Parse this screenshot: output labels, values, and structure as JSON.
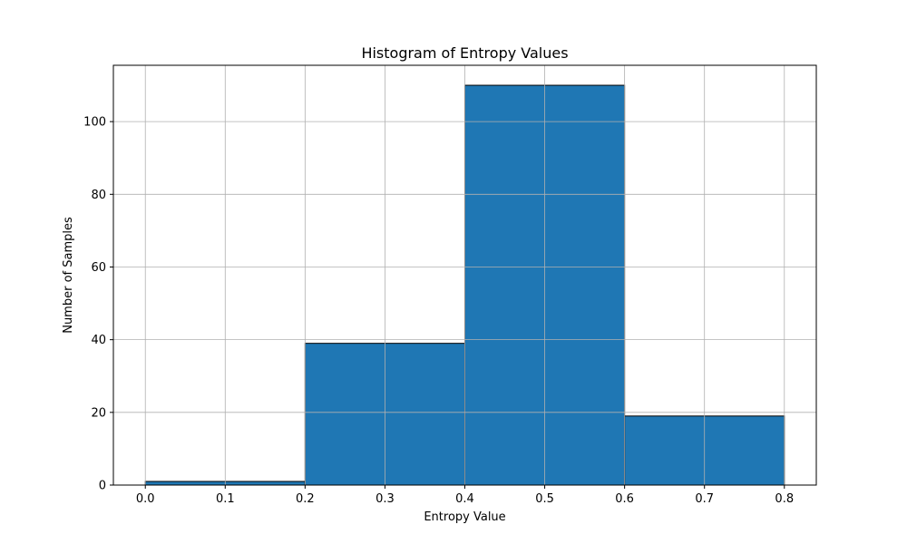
{
  "chart_data": {
    "type": "bar",
    "title": "Histogram of Entropy Values",
    "xlabel": "Entropy Value",
    "ylabel": "Number of Samples",
    "bins": [
      {
        "start": 0.0,
        "end": 0.2,
        "count": 1
      },
      {
        "start": 0.2,
        "end": 0.4,
        "count": 39
      },
      {
        "start": 0.4,
        "end": 0.6,
        "count": 110
      },
      {
        "start": 0.6,
        "end": 0.8,
        "count": 19
      }
    ],
    "xlim": [
      -0.04,
      0.84
    ],
    "ylim": [
      0,
      115.5
    ],
    "x_ticks": [
      "0.0",
      "0.1",
      "0.2",
      "0.3",
      "0.4",
      "0.5",
      "0.6",
      "0.7",
      "0.8"
    ],
    "y_ticks": [
      "0",
      "20",
      "40",
      "60",
      "80",
      "100"
    ],
    "grid": true,
    "colors": {
      "bar": "#1f77b4",
      "bar_edge": "#000000",
      "grid": "#b0b0b0"
    }
  }
}
